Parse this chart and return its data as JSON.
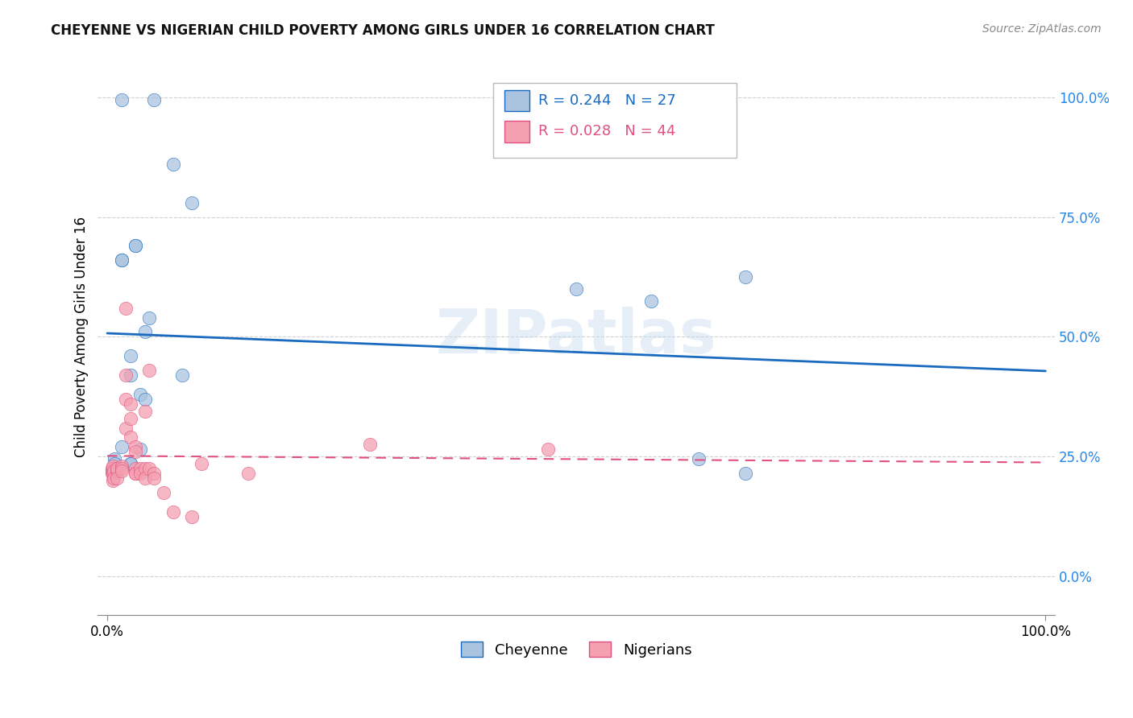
{
  "title": "CHEYENNE VS NIGERIAN CHILD POVERTY AMONG GIRLS UNDER 16 CORRELATION CHART",
  "source": "Source: ZipAtlas.com",
  "ylabel": "Child Poverty Among Girls Under 16",
  "watermark": "ZIPatlas",
  "legend_r1": "R = 0.244",
  "legend_n1": "N = 27",
  "legend_r2": "R = 0.028",
  "legend_n2": "N = 44",
  "legend_label1": "Cheyenne",
  "legend_label2": "Nigerians",
  "cheyenne_color": "#aac4e0",
  "nigerian_color": "#f4a0b0",
  "cheyenne_line_color": "#1a6bbf",
  "nigerian_line_color": "#e05080",
  "cheyenne_x": [
    0.03,
    0.03,
    0.07,
    0.09,
    0.015,
    0.015,
    0.04,
    0.045,
    0.025,
    0.025,
    0.035,
    0.04,
    0.08,
    0.015,
    0.035,
    0.008,
    0.008,
    0.008,
    0.5,
    0.58,
    0.68,
    0.05,
    0.015,
    0.63,
    0.68,
    0.025,
    0.025
  ],
  "cheyenne_y": [
    0.69,
    0.69,
    0.86,
    0.78,
    0.66,
    0.66,
    0.51,
    0.54,
    0.46,
    0.42,
    0.38,
    0.37,
    0.42,
    0.27,
    0.265,
    0.245,
    0.235,
    0.225,
    0.6,
    0.575,
    0.625,
    0.995,
    0.995,
    0.245,
    0.215,
    0.235,
    0.235
  ],
  "nigerian_x": [
    0.005,
    0.005,
    0.005,
    0.006,
    0.006,
    0.006,
    0.006,
    0.007,
    0.007,
    0.01,
    0.01,
    0.01,
    0.01,
    0.015,
    0.015,
    0.015,
    0.02,
    0.02,
    0.02,
    0.02,
    0.025,
    0.025,
    0.025,
    0.03,
    0.03,
    0.03,
    0.03,
    0.03,
    0.035,
    0.035,
    0.04,
    0.04,
    0.04,
    0.045,
    0.045,
    0.05,
    0.05,
    0.06,
    0.07,
    0.09,
    0.1,
    0.15,
    0.28,
    0.47
  ],
  "nigerian_y": [
    0.215,
    0.22,
    0.225,
    0.225,
    0.23,
    0.215,
    0.2,
    0.22,
    0.205,
    0.225,
    0.22,
    0.225,
    0.205,
    0.23,
    0.225,
    0.22,
    0.56,
    0.42,
    0.37,
    0.31,
    0.36,
    0.33,
    0.29,
    0.27,
    0.26,
    0.225,
    0.215,
    0.215,
    0.225,
    0.215,
    0.345,
    0.225,
    0.205,
    0.225,
    0.43,
    0.215,
    0.205,
    0.175,
    0.135,
    0.125,
    0.235,
    0.215,
    0.275,
    0.265
  ],
  "ytick_labels": [
    "0.0%",
    "25.0%",
    "50.0%",
    "75.0%",
    "100.0%"
  ],
  "ytick_values": [
    0.0,
    0.25,
    0.5,
    0.75,
    1.0
  ],
  "background_color": "#ffffff",
  "grid_color": "#d0d0d0"
}
